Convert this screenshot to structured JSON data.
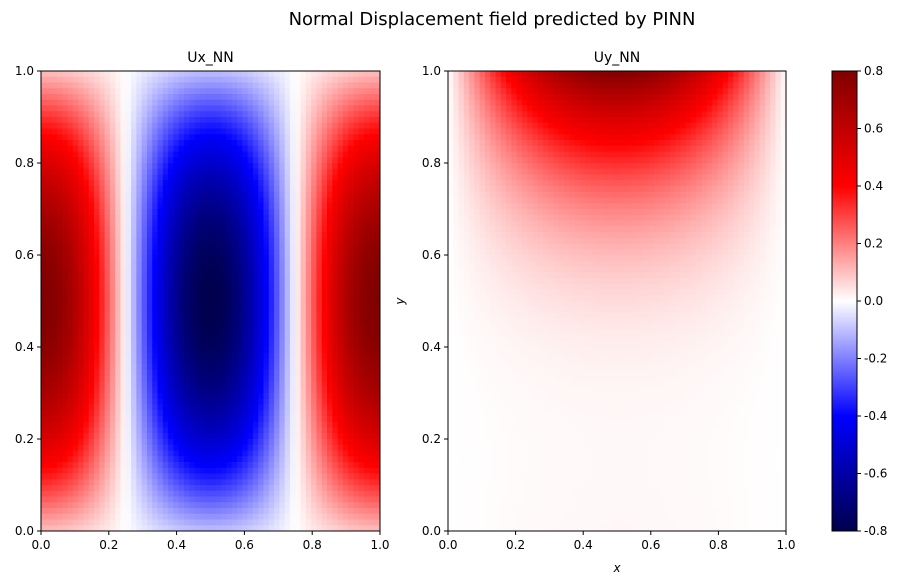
{
  "chart_data": {
    "type": "heatmap",
    "title": "Normal Displacement field predicted by PINN",
    "colormap": "seismic",
    "colorbar": {
      "range": [
        -0.8,
        0.8
      ],
      "ticks": [
        "-0.8",
        "-0.6",
        "-0.4",
        "-0.2",
        "0.0",
        "0.2",
        "0.4",
        "0.6",
        "0.8"
      ],
      "tick_values": [
        -0.8,
        -0.6,
        -0.4,
        -0.2,
        0.0,
        0.2,
        0.4,
        0.6,
        0.8
      ]
    },
    "panels": [
      {
        "title": "Ux_NN",
        "xlabel": "",
        "ylabel": "",
        "xlim": [
          0,
          1
        ],
        "ylim": [
          0,
          1
        ],
        "xticks": [
          "0.0",
          "0.2",
          "0.4",
          "0.6",
          "0.8",
          "1.0"
        ],
        "yticks": [
          "0.0",
          "0.2",
          "0.4",
          "0.6",
          "0.8",
          "1.0"
        ],
        "field": "approx. 0.8*cos(2*pi*x)*sin(pi*y); max ~0.8 at x=0 and x=1, y~0.5; min ~-0.8 at x=0.5, y~0.5"
      },
      {
        "title": "Uy_NN",
        "xlabel": "x",
        "ylabel": "y",
        "xlim": [
          0,
          1
        ],
        "ylim": [
          0,
          1
        ],
        "xticks": [
          "0.0",
          "0.2",
          "0.4",
          "0.6",
          "0.8",
          "1.0"
        ],
        "yticks": [
          "0.0",
          "0.2",
          "0.4",
          "0.6",
          "0.8",
          "1.0"
        ],
        "field": "approx. 0.8*sin(pi*x)*y^4; max ~0.8 at x=0.5, y=1; ~0 in lower half"
      }
    ]
  }
}
